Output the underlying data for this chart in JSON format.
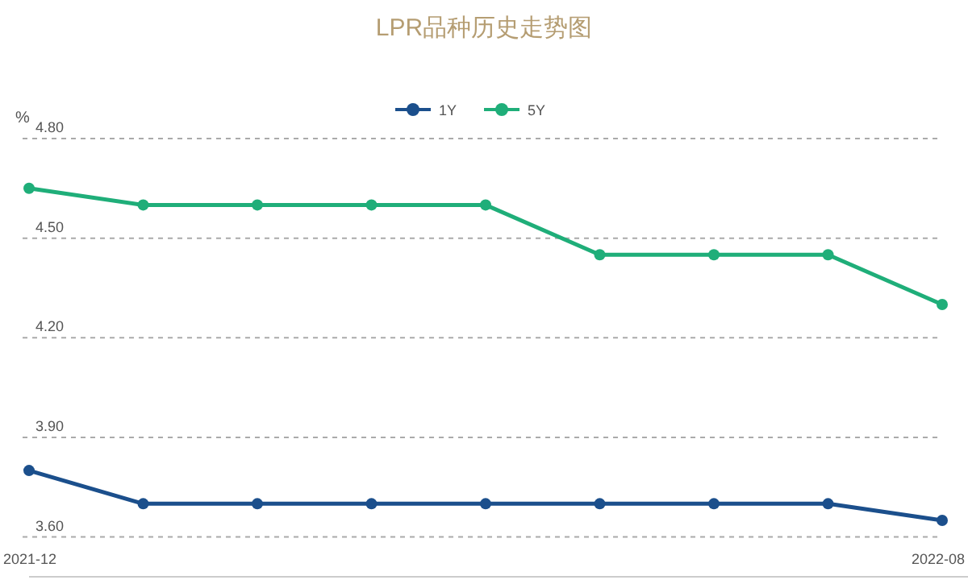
{
  "chart_data": {
    "type": "line",
    "title": "LPR品种历史走势图",
    "ylabel": "%",
    "categories": [
      "2021-12",
      null,
      null,
      null,
      null,
      null,
      null,
      null,
      "2022-08"
    ],
    "series": [
      {
        "name": "1Y",
        "color": "#1b4f8c",
        "values": [
          3.8,
          3.7,
          3.7,
          3.7,
          3.7,
          3.7,
          3.7,
          3.7,
          3.65
        ]
      },
      {
        "name": "5Y",
        "color": "#1fae79",
        "values": [
          4.65,
          4.6,
          4.6,
          4.6,
          4.6,
          4.45,
          4.45,
          4.45,
          4.3
        ]
      }
    ],
    "ylim": [
      3.48,
      4.8
    ],
    "yticks": [
      {
        "value": 3.6,
        "label": "3.60"
      },
      {
        "value": 3.9,
        "label": "3.90"
      },
      {
        "value": 4.2,
        "label": "4.20"
      },
      {
        "value": 4.5,
        "label": "4.50"
      },
      {
        "value": 4.8,
        "label": "4.80"
      }
    ],
    "grid": "y",
    "legend": "top",
    "marker": "circle",
    "line_style": "solid"
  }
}
